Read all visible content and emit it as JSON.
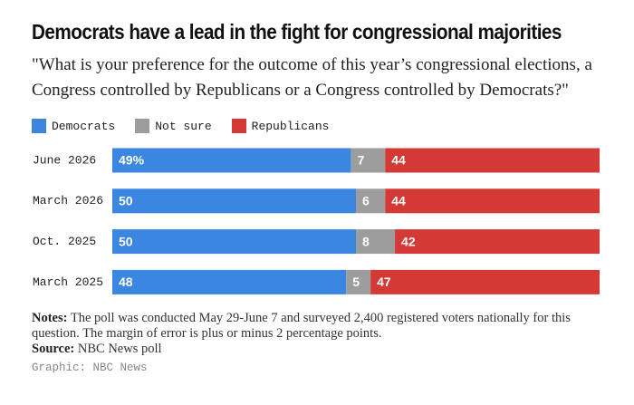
{
  "chart_data": {
    "type": "bar",
    "orientation": "horizontal",
    "stacked": true,
    "title": "Democrats have a lead in the fight for congressional majorities",
    "subtitle": "\"What is your preference for the outcome of this year’s congressional elections, a Congress controlled by Republicans or a Congress controlled by Democrats?\"",
    "categories": [
      "June 2026",
      "March 2026",
      "Oct. 2025",
      "March 2025"
    ],
    "series": [
      {
        "name": "Democrats",
        "color": "#3b86e0",
        "values": [
          49,
          50,
          50,
          48
        ],
        "value_labels": [
          "49%",
          "50",
          "50",
          "48"
        ]
      },
      {
        "name": "Not sure",
        "color": "#9d9d9d",
        "values": [
          7,
          6,
          8,
          5
        ]
      },
      {
        "name": "Republicans",
        "color": "#d33a35",
        "values": [
          44,
          44,
          42,
          47
        ]
      }
    ],
    "notes_label": "Notes:",
    "notes": "The poll was conducted May 29-June 7 and surveyed 2,400 registered voters nationally for this question. The margin of error is plus or minus 2 percentage points.",
    "source_label": "Source:",
    "source": "NBC News poll",
    "credit": "Graphic: NBC News"
  }
}
